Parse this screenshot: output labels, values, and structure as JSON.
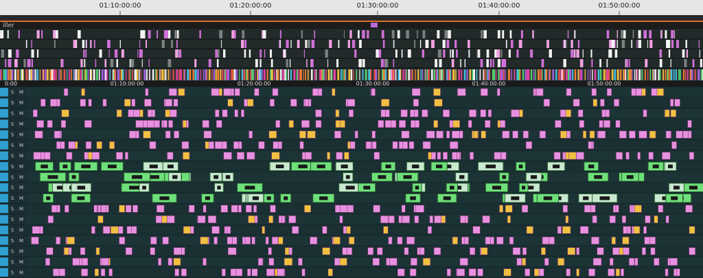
{
  "top_ruler": {
    "ticks": [
      "01:10:00:00",
      "01:20:00:00",
      "01:30:00:00",
      "01:40:00:00",
      "01:50:00:00"
    ]
  },
  "sequence_tab": "iller",
  "timeline_ruler": {
    "ticks": [
      "0:00",
      "01:10:00:00",
      "01:20:00:00",
      "01:30:00:00",
      "01:40:00:00",
      "01:50:00:00"
    ]
  },
  "track_headers": [
    {
      "solo": "S",
      "mute": "M"
    },
    {
      "solo": "S",
      "mute": "M"
    },
    {
      "solo": "S",
      "mute": "M"
    },
    {
      "solo": "S",
      "mute": "M"
    },
    {
      "solo": "S",
      "mute": "M"
    },
    {
      "solo": "S",
      "mute": "M"
    },
    {
      "solo": "S",
      "mute": "M"
    },
    {
      "solo": "S",
      "mute": "M"
    },
    {
      "solo": "S",
      "mute": "M"
    },
    {
      "solo": "S",
      "mute": "M"
    },
    {
      "solo": "S",
      "mute": "M"
    },
    {
      "solo": "S",
      "mute": "M"
    },
    {
      "solo": "S",
      "mute": "M"
    },
    {
      "solo": "S",
      "mute": "M"
    },
    {
      "solo": "S",
      "mute": "M"
    },
    {
      "solo": "S",
      "mute": "M"
    },
    {
      "solo": "S",
      "mute": "M"
    },
    {
      "solo": "S",
      "mute": "M"
    }
  ]
}
